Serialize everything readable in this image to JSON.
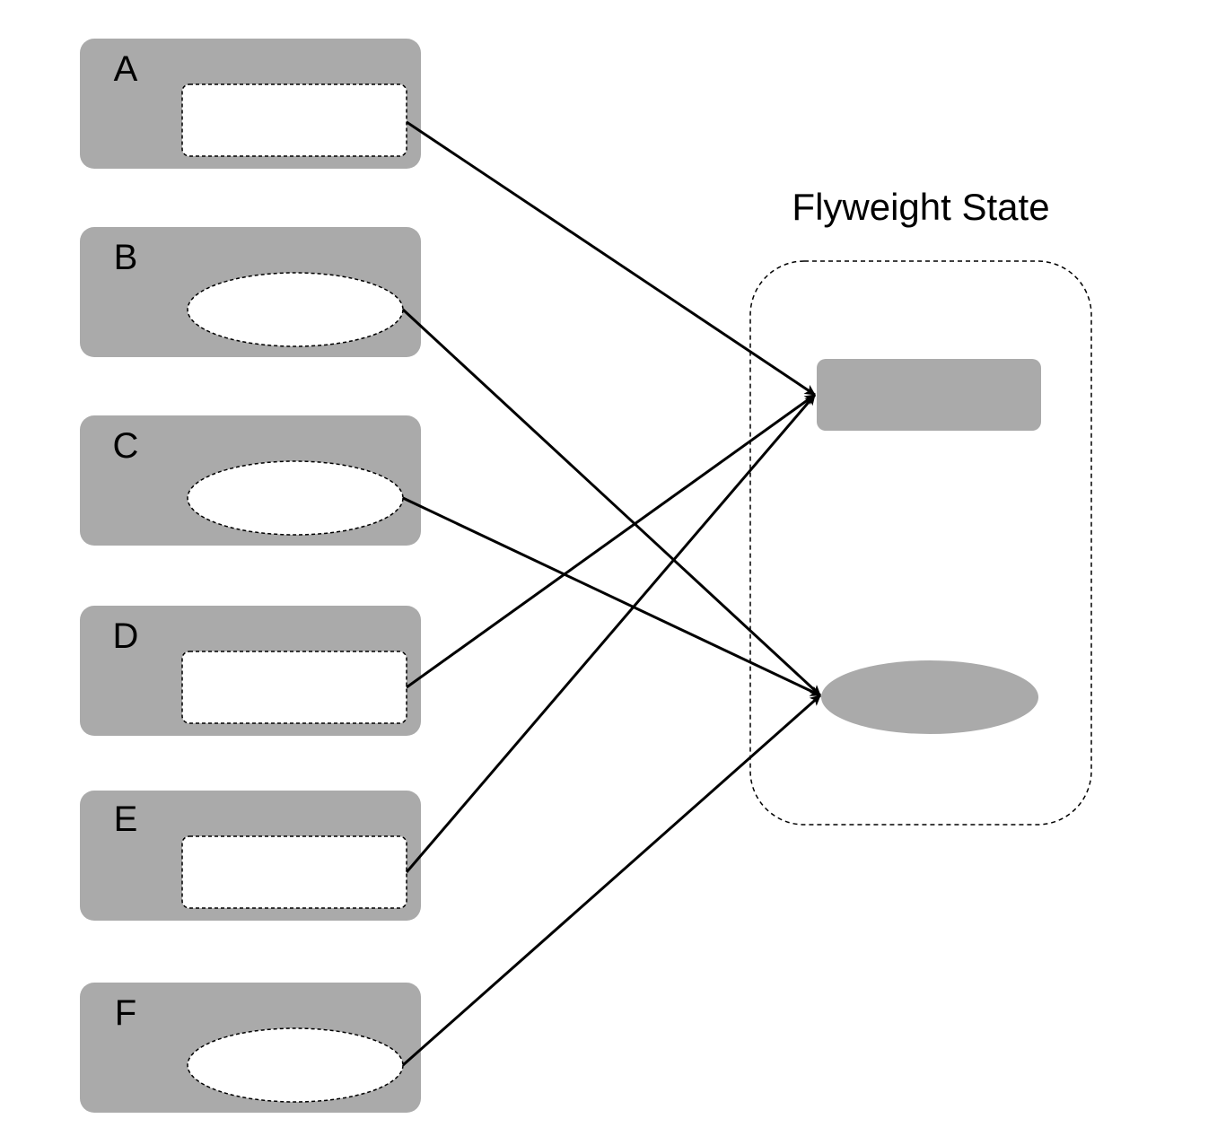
{
  "objects": [
    {
      "label": "A",
      "shape": "rectangle",
      "target": "rectangle"
    },
    {
      "label": "B",
      "shape": "ellipse",
      "target": "ellipse"
    },
    {
      "label": "C",
      "shape": "ellipse",
      "target": "ellipse"
    },
    {
      "label": "D",
      "shape": "rectangle",
      "target": "rectangle"
    },
    {
      "label": "E",
      "shape": "rectangle",
      "target": "rectangle"
    },
    {
      "label": "F",
      "shape": "ellipse",
      "target": "ellipse"
    }
  ],
  "flyweight": {
    "title": "Flyweight State",
    "shared_shapes": [
      "rectangle",
      "ellipse"
    ]
  },
  "colors": {
    "box_fill": "#aaaaaa",
    "slot_fill": "#ffffff",
    "stroke": "#000000"
  }
}
